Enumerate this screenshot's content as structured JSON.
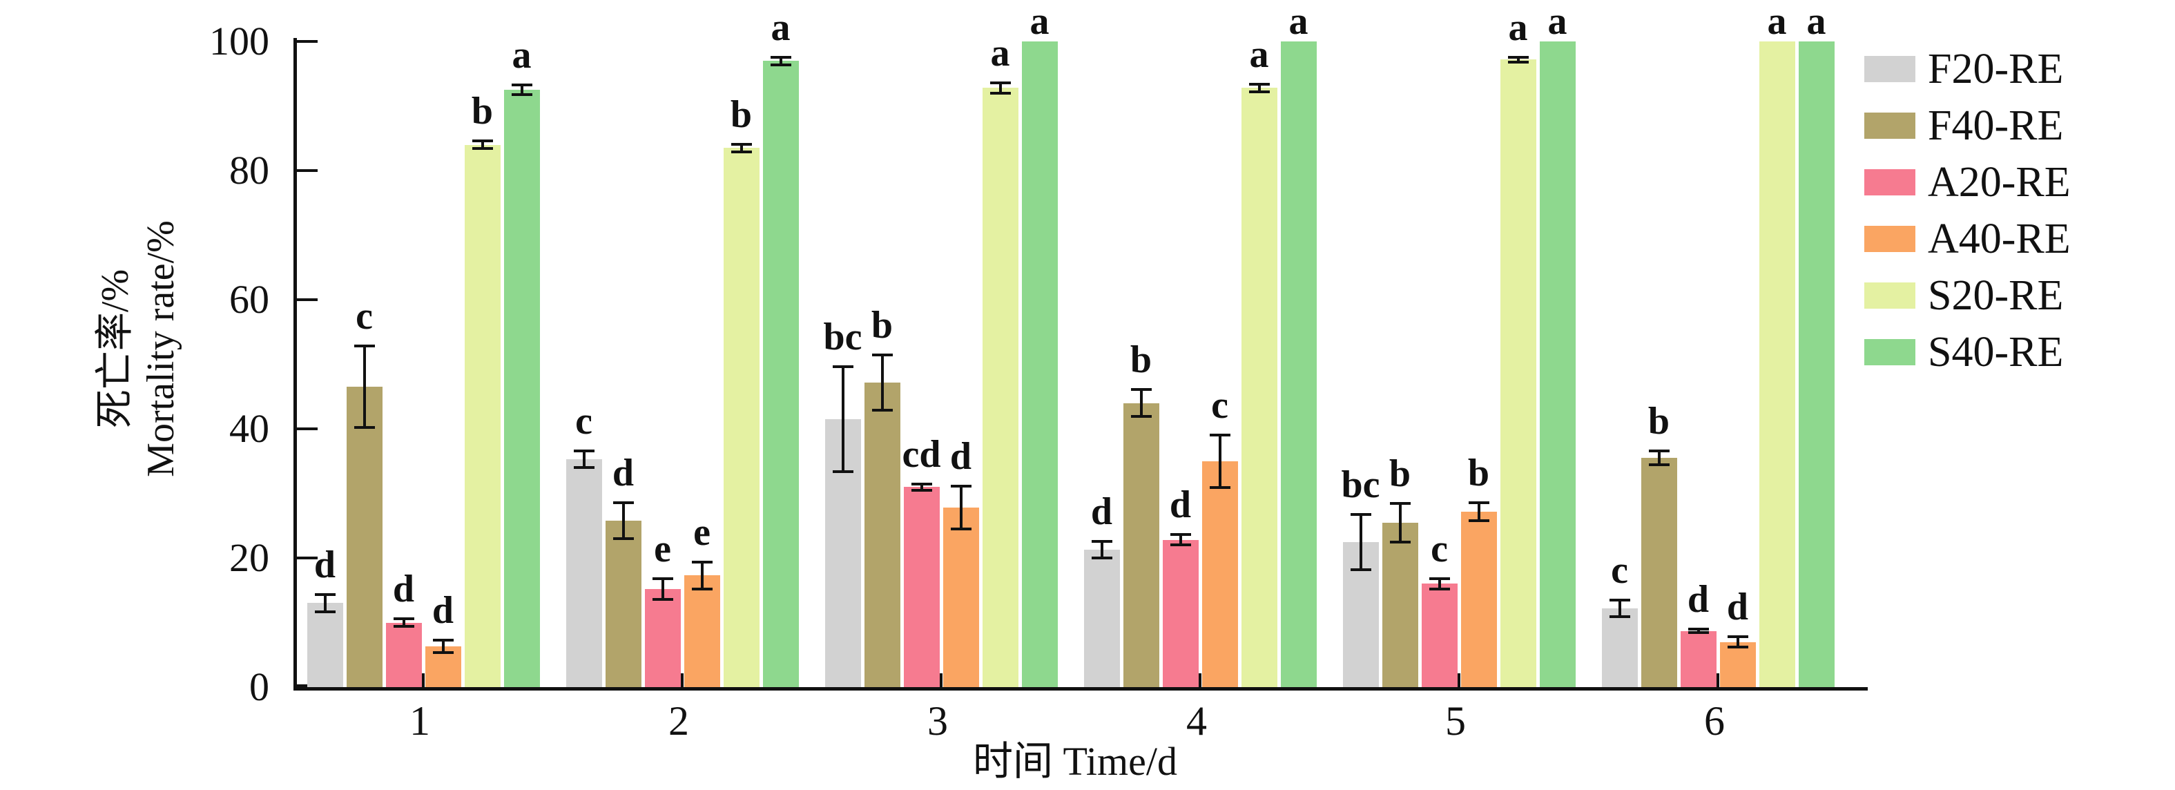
{
  "figure": {
    "background": "#ffffff",
    "axis_color": "#111111"
  },
  "chart_data": {
    "type": "bar",
    "title": "",
    "xlabel": "时间 Time/d",
    "ylabel_zh": "死亡率/%",
    "ylabel_en": "Mortality rate/%",
    "ylim": [
      0,
      100
    ],
    "yticks": [
      0,
      20,
      40,
      60,
      80,
      100
    ],
    "categories": [
      "1",
      "2",
      "3",
      "4",
      "5",
      "6"
    ],
    "grid": false,
    "legend_position": "right",
    "error_bars": true,
    "series": [
      {
        "name": "F20-RE",
        "color": "#d2d2d2",
        "values": [
          13.0,
          35.3,
          41.5,
          21.3,
          22.5,
          12.2
        ],
        "errors": [
          1.6,
          1.5,
          8.3,
          1.5,
          4.5,
          1.5
        ],
        "letters": [
          "d",
          "c",
          "bc",
          "d",
          "bc",
          "c"
        ]
      },
      {
        "name": "F40-RE",
        "color": "#b2a46a",
        "values": [
          46.5,
          25.8,
          47.2,
          44.0,
          25.5,
          35.5
        ],
        "errors": [
          6.5,
          3.0,
          4.5,
          2.3,
          3.2,
          1.3
        ],
        "letters": [
          "c",
          "d",
          "b",
          "b",
          "b",
          "b"
        ]
      },
      {
        "name": "A20-RE",
        "color": "#f67b90",
        "values": [
          10.0,
          15.2,
          31.0,
          22.8,
          16.0,
          8.7
        ],
        "errors": [
          0.8,
          1.8,
          0.7,
          1.0,
          1.0,
          0.5
        ],
        "letters": [
          "d",
          "e",
          "cd",
          "d",
          "c",
          "d"
        ]
      },
      {
        "name": "A40-RE",
        "color": "#faa562",
        "values": [
          6.3,
          17.3,
          27.8,
          35.0,
          27.2,
          7.0
        ],
        "errors": [
          1.2,
          2.3,
          3.5,
          4.3,
          1.6,
          1.0
        ],
        "letters": [
          "d",
          "e",
          "d",
          "c",
          "b",
          "d"
        ]
      },
      {
        "name": "S20-RE",
        "color": "#e4f1a2",
        "values": [
          84.0,
          83.5,
          92.8,
          92.8,
          97.2,
          100.0
        ],
        "errors": [
          0.8,
          0.8,
          1.0,
          0.8,
          0.6,
          0.0
        ],
        "letters": [
          "b",
          "b",
          "a",
          "a",
          "a",
          "a"
        ]
      },
      {
        "name": "S40-RE",
        "color": "#8ed88e",
        "values": [
          92.5,
          97.0,
          100.0,
          100.0,
          100.0,
          100.0
        ],
        "errors": [
          1.0,
          0.8,
          0.0,
          0.0,
          0.0,
          0.0
        ],
        "letters": [
          "a",
          "a",
          "a",
          "a",
          "a",
          "a"
        ]
      }
    ]
  }
}
